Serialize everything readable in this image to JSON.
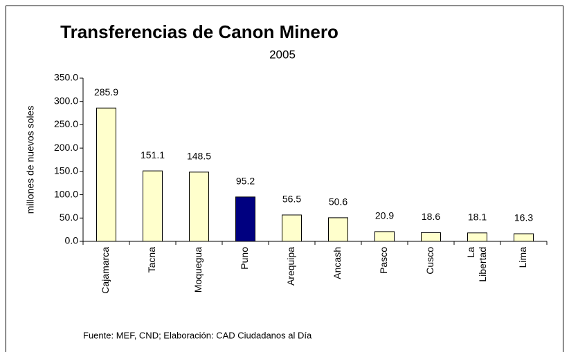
{
  "chart_data": {
    "type": "bar",
    "title": "Transferencias de Canon Minero",
    "subtitle": "2005",
    "y_label": "millones de nuevos soles",
    "source": "Fuente: MEF, CND; Elaboración: CAD Ciudadanos al Día",
    "categories": [
      "Cajamarca",
      "Tacna",
      "Moquegua",
      "Puno",
      "Arequipa",
      "Ancash",
      "Pasco",
      "Cusco",
      "La Libertad",
      "Lima"
    ],
    "values": [
      285.9,
      151.1,
      148.5,
      95.2,
      56.5,
      50.6,
      20.9,
      18.6,
      18.1,
      16.3
    ],
    "colors": [
      "#ffffcc",
      "#ffffcc",
      "#ffffcc",
      "#000080",
      "#ffffcc",
      "#ffffcc",
      "#ffffcc",
      "#ffffcc",
      "#ffffcc",
      "#ffffcc"
    ],
    "ylim": [
      0,
      350
    ],
    "yticks": [
      {
        "value": 0,
        "label": "0.0"
      },
      {
        "value": 50,
        "label": "50.0"
      },
      {
        "value": 100,
        "label": "100.0"
      },
      {
        "value": 150,
        "label": "150.0"
      },
      {
        "value": 200,
        "label": "200.0"
      },
      {
        "value": 250,
        "label": "250.0"
      },
      {
        "value": 300,
        "label": "300.0"
      },
      {
        "value": 350,
        "label": "350.0"
      }
    ],
    "grid": false
  }
}
